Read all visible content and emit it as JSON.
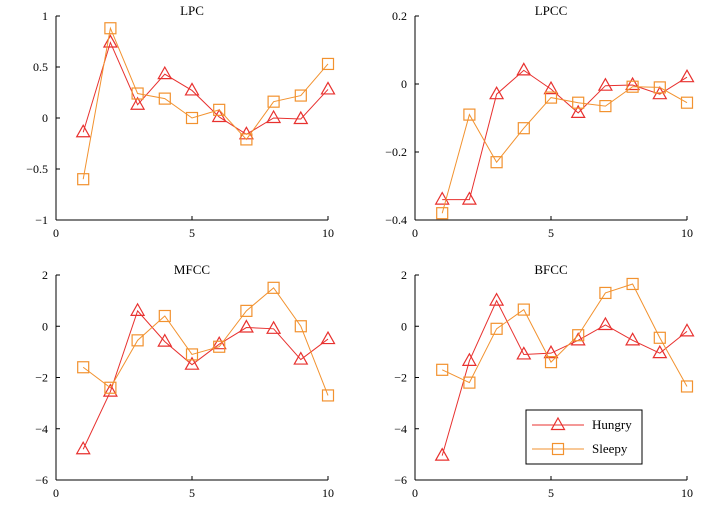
{
  "colors": {
    "hungry": "#e8312f",
    "sleepy": "#f2922f",
    "axis": "#000000"
  },
  "legend": {
    "placement": "bottom-right of BFCC panel",
    "entries": [
      "Hungry",
      "Sleepy"
    ]
  },
  "chart_data": [
    {
      "type": "line",
      "title": "LPC",
      "x": [
        1,
        2,
        3,
        4,
        5,
        6,
        7,
        8,
        9,
        10
      ],
      "xlim": [
        0,
        10
      ],
      "xticks": [
        0,
        5,
        10
      ],
      "ylim": [
        -1,
        1
      ],
      "yticks": [
        -1,
        -0.5,
        0,
        0.5,
        1
      ],
      "ytick_labels": [
        "−1",
        "−0.5",
        "0",
        "0.5",
        "1"
      ],
      "series": [
        {
          "name": "Hungry",
          "marker": "triangle",
          "values": [
            -0.14,
            0.74,
            0.13,
            0.43,
            0.27,
            0.01,
            -0.16,
            0.0,
            -0.01,
            0.28
          ]
        },
        {
          "name": "Sleepy",
          "marker": "square",
          "values": [
            -0.6,
            0.88,
            0.24,
            0.19,
            0.0,
            0.08,
            -0.21,
            0.16,
            0.22,
            0.53
          ]
        }
      ]
    },
    {
      "type": "line",
      "title": "LPCC",
      "x": [
        1,
        2,
        3,
        4,
        5,
        6,
        7,
        8,
        9,
        10
      ],
      "xlim": [
        0,
        10
      ],
      "xticks": [
        0,
        5,
        10
      ],
      "ylim": [
        -0.4,
        0.2
      ],
      "yticks": [
        -0.4,
        -0.2,
        0,
        0.2
      ],
      "ytick_labels": [
        "−0.4",
        "−0.2",
        "0",
        "0.2"
      ],
      "series": [
        {
          "name": "Hungry",
          "marker": "triangle",
          "values": [
            -0.34,
            -0.34,
            -0.03,
            0.04,
            -0.015,
            -0.085,
            -0.005,
            -0.003,
            -0.03,
            0.02
          ]
        },
        {
          "name": "Sleepy",
          "marker": "square",
          "values": [
            -0.38,
            -0.09,
            -0.23,
            -0.13,
            -0.04,
            -0.055,
            -0.065,
            -0.008,
            -0.01,
            -0.055
          ]
        }
      ]
    },
    {
      "type": "line",
      "title": "MFCC",
      "x": [
        1,
        2,
        3,
        4,
        5,
        6,
        7,
        8,
        9,
        10
      ],
      "xlim": [
        0,
        10
      ],
      "xticks": [
        0,
        5,
        10
      ],
      "ylim": [
        -6,
        2
      ],
      "yticks": [
        -6,
        -4,
        -2,
        0,
        2
      ],
      "ytick_labels": [
        "−6",
        "−4",
        "−2",
        "0",
        "2"
      ],
      "series": [
        {
          "name": "Hungry",
          "marker": "triangle",
          "values": [
            -4.8,
            -2.55,
            0.6,
            -0.6,
            -1.5,
            -0.7,
            -0.05,
            -0.1,
            -1.3,
            -0.5
          ]
        },
        {
          "name": "Sleepy",
          "marker": "square",
          "values": [
            -1.6,
            -2.4,
            -0.55,
            0.4,
            -1.1,
            -0.8,
            0.6,
            1.5,
            0.0,
            -2.7
          ]
        }
      ]
    },
    {
      "type": "line",
      "title": "BFCC",
      "x": [
        1,
        2,
        3,
        4,
        5,
        6,
        7,
        8,
        9,
        10
      ],
      "xlim": [
        0,
        10
      ],
      "xticks": [
        0,
        5,
        10
      ],
      "ylim": [
        -6,
        2
      ],
      "yticks": [
        -6,
        -4,
        -2,
        0,
        2
      ],
      "ytick_labels": [
        "−6",
        "−4",
        "−2",
        "0",
        "2"
      ],
      "series": [
        {
          "name": "Hungry",
          "marker": "triangle",
          "values": [
            -5.05,
            -1.35,
            1.0,
            -1.1,
            -1.05,
            -0.55,
            0.05,
            -0.55,
            -1.05,
            -0.2
          ]
        },
        {
          "name": "Sleepy",
          "marker": "square",
          "values": [
            -1.7,
            -2.2,
            -0.1,
            0.65,
            -1.4,
            -0.35,
            1.3,
            1.65,
            -0.45,
            -2.35
          ]
        }
      ]
    }
  ]
}
